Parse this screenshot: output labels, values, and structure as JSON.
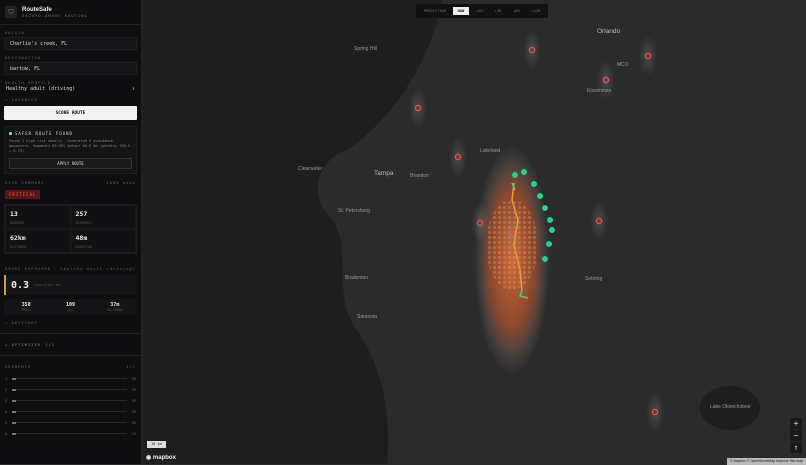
{
  "app": {
    "title": "RouteSafe",
    "subtitle": "HAZARD-AWARE ROUTING",
    "logo_icon": "shield-icon"
  },
  "form": {
    "origin_label": "ORIGIN",
    "origin_value": "Charlie's creek, FL",
    "destination_label": "DESTINATION",
    "destination_value": "bartow, FL",
    "profile_label": "HEALTH PROFILE",
    "profile_value": "Healthy adult (driving)",
    "advanced": "+ ADVANCED",
    "score_button": "SCORE ROUTE"
  },
  "alert": {
    "title": "SAFER ROUTE FOUND",
    "text": "Found 1 high-risk zone(s). Generated 9 avoidance waypoints. Segments 83.39% detour 65.6 km (penalty 250.5 → 0.75)",
    "button": "APPLY ROUTE"
  },
  "risk": {
    "label": "RISK SUMMARY",
    "score": "1000 peak",
    "level": "CRITICAL",
    "stats": [
      {
        "value": "13",
        "label": "HAZARDS"
      },
      {
        "value": "257",
        "label": "SEGMENTS"
      },
      {
        "value": "62km",
        "label": "DISTANCE"
      },
      {
        "value": "48m",
        "label": "DURATION"
      }
    ]
  },
  "smoke": {
    "label": "SMOKE EXPOSURE",
    "profile": "healthy adult (driving)",
    "value": "0.3",
    "unit": "cigarettes eq.",
    "stats": [
      {
        "value": "350",
        "label": "PM2.5"
      },
      {
        "value": "109",
        "label": "AQI"
      },
      {
        "value": "37m",
        "label": "IN SMOKE"
      }
    ],
    "advisory": "+ ADVISORY"
  },
  "optimizer": {
    "label": "+ OPTIMIZER",
    "count": "1/1"
  },
  "segments": {
    "label": "SEGMENTS",
    "count": "1/7",
    "rows": [
      {
        "i": "1",
        "v": "90"
      },
      {
        "i": "2",
        "v": "90"
      },
      {
        "i": "3",
        "v": "90"
      },
      {
        "i": "4",
        "v": "90"
      },
      {
        "i": "5",
        "v": "90"
      },
      {
        "i": "6",
        "v": "75"
      }
    ]
  },
  "timebar": {
    "label": "PREDICTION",
    "options": [
      "NOW",
      "+1H",
      "+3H",
      "+6H",
      "+12H"
    ],
    "selected": "NOW"
  },
  "map": {
    "cities": [
      {
        "n": "Orlando",
        "b": true
      },
      {
        "n": "Kissimmee"
      },
      {
        "n": "Tampa",
        "b": true
      },
      {
        "n": "Brandon"
      },
      {
        "n": "Clearwater"
      },
      {
        "n": "St. Petersburg"
      },
      {
        "n": "Bradenton"
      },
      {
        "n": "Sarasota"
      },
      {
        "n": "Sebring"
      },
      {
        "n": "Lakeland"
      },
      {
        "n": "Spring Hill"
      },
      {
        "n": "Lake Okeechobee"
      },
      {
        "n": "MCO"
      }
    ],
    "scale": "10 km",
    "brand": "mapbox",
    "attribution": "© Mapbox © OpenStreetMap Improve this map",
    "zoom_in": "+",
    "zoom_out": "−",
    "compass": "↑",
    "colors": {
      "hazard": "#ff4a4a",
      "route_risk": "#e8a030",
      "route_safe": "#3ddc84",
      "waypoint": "#33c9a0",
      "heat": "#e0703a"
    }
  }
}
